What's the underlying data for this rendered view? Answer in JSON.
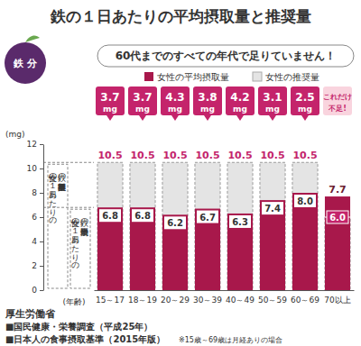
{
  "chart_data": {
    "type": "bar",
    "title": "鉄の１日あたりの平均摂取量と推奨量",
    "subtitle": "60代までのすべての年代で足りていません！",
    "y_label": "(mg)",
    "x_label": "(年齢)",
    "categories": [
      "15～17",
      "18～19",
      "20～29",
      "30～39",
      "40～49",
      "50～59",
      "60～69",
      "70以上"
    ],
    "series": [
      {
        "name": "女性の平均摂取量",
        "color": "#a8184b",
        "values": [
          6.8,
          6.8,
          6.2,
          6.7,
          6.3,
          7.4,
          8.0,
          7.7
        ],
        "value_labels": [
          "6.8",
          "6.8",
          "6.2",
          "6.7",
          "6.3",
          "7.4",
          "8.0",
          "7.7"
        ]
      },
      {
        "name": "女性の推奨量",
        "color": "#e4e4e4",
        "values": [
          10.5,
          10.5,
          10.5,
          10.5,
          10.5,
          10.5,
          10.5,
          6.0
        ],
        "value_labels": [
          "10.5",
          "10.5",
          "10.5",
          "10.5",
          "10.5",
          "10.5",
          "10.5",
          "6.0"
        ]
      }
    ],
    "deficit": {
      "color": "#c4246b",
      "values": [
        3.7,
        3.7,
        4.3,
        3.8,
        4.2,
        3.1,
        2.5,
        null
      ],
      "value_labels": [
        "3.7 mg",
        "3.7 mg",
        "4.3 mg",
        "3.8 mg",
        "4.2 mg",
        "3.1 mg",
        "2.5 mg",
        null
      ]
    },
    "annotations": [
      {
        "text": "鉄 分"
      },
      {
        "lines": [
          "これだけ",
          "不足!"
        ]
      },
      {
        "lines": [
          "女性の１日あたりの",
          "鉄の摂取基準推奨量"
        ]
      },
      {
        "lines": [
          "女性の１日あたりの",
          "鉄の平均摂取量"
        ]
      }
    ],
    "ylim": [
      0,
      12
    ],
    "yticks": [
      0,
      2,
      4,
      6,
      8,
      10,
      12
    ],
    "grid": false,
    "legend": "top",
    "data_labels": true,
    "source": [
      "厚生労働省",
      "■国民健康・栄養調査（平成25年）",
      "■日本人の食事摂取基準（2015年版）"
    ],
    "note": "※15歳～69歳は月経ありの場合"
  }
}
